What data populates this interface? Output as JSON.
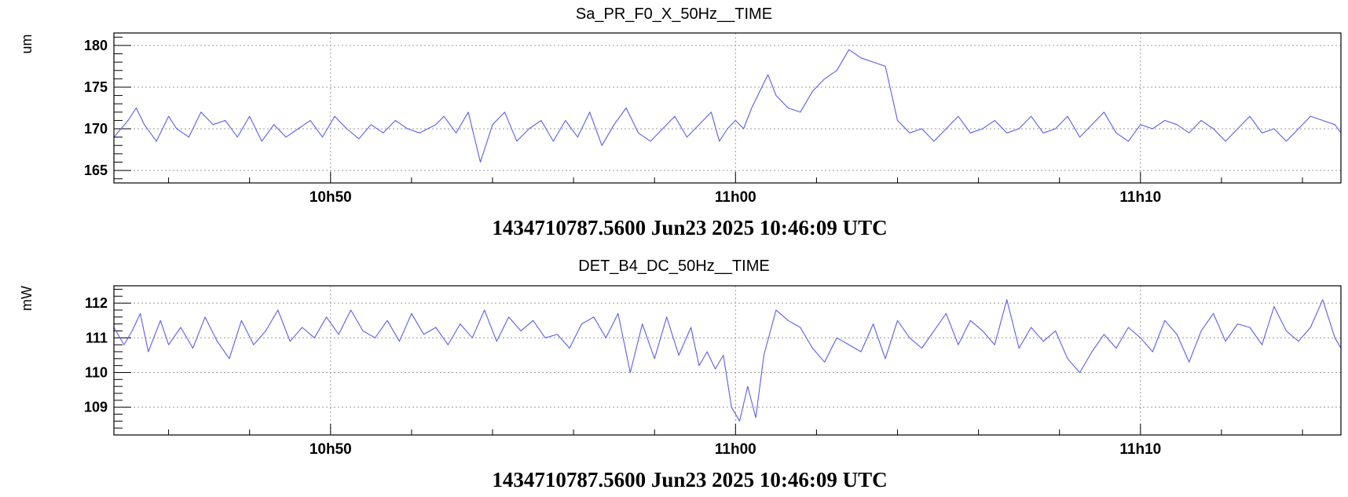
{
  "colors": {
    "trace": "#5a5ef0",
    "frame": "#000000",
    "grid": "#9a9a9a"
  },
  "chart_data": [
    {
      "type": "line",
      "title": "Sa_PR_F0_X_50Hz__TIME",
      "ylabel": "um",
      "xlabel": "1434710787.5600 Jun23 2025 10:46:09 UTC",
      "xlim_minutes": [
        44.65,
        74.95
      ],
      "ylim": [
        163.5,
        181.5
      ],
      "yticks": [
        165,
        170,
        175,
        180
      ],
      "ytick_labels": [
        "165",
        "170",
        "175",
        "180"
      ],
      "yminor_step": 1,
      "xticks_minutes": [
        50,
        60,
        70
      ],
      "xtick_labels": [
        "10h50",
        "11h00",
        "11h10"
      ],
      "xminor_step": 2,
      "grid": true,
      "series": [
        {
          "x_minutes": [
            44.65,
            45.0,
            45.2,
            45.4,
            45.7,
            46.0,
            46.2,
            46.5,
            46.8,
            47.1,
            47.4,
            47.7,
            48.0,
            48.3,
            48.6,
            48.9,
            49.2,
            49.5,
            49.8,
            50.1,
            50.4,
            50.7,
            51.0,
            51.3,
            51.6,
            51.9,
            52.2,
            52.6,
            52.8,
            53.1,
            53.4,
            53.7,
            54.0,
            54.3,
            54.6,
            54.9,
            55.2,
            55.5,
            55.8,
            56.1,
            56.4,
            56.7,
            57.0,
            57.3,
            57.6,
            57.9,
            58.2,
            58.5,
            58.8,
            59.1,
            59.4,
            59.6,
            59.8,
            60.0,
            60.2,
            60.4,
            60.6,
            60.8,
            61.0,
            61.3,
            61.6,
            61.9,
            62.2,
            62.5,
            62.8,
            63.1,
            63.4,
            63.7,
            64.0,
            64.3,
            64.6,
            64.9,
            65.2,
            65.5,
            65.8,
            66.1,
            66.4,
            66.7,
            67.0,
            67.3,
            67.6,
            67.9,
            68.2,
            68.5,
            68.8,
            69.1,
            69.4,
            69.7,
            70.0,
            70.3,
            70.6,
            70.9,
            71.2,
            71.5,
            71.8,
            72.1,
            72.4,
            72.7,
            73.0,
            73.3,
            73.6,
            73.9,
            74.2,
            74.5,
            74.8,
            74.95
          ],
          "values": [
            169.0,
            171.0,
            172.5,
            170.5,
            168.5,
            171.5,
            170.0,
            169.0,
            172.0,
            170.5,
            171.0,
            169.0,
            171.5,
            168.5,
            170.5,
            169.0,
            170.0,
            171.0,
            169.0,
            171.5,
            170.0,
            168.8,
            170.5,
            169.5,
            171.0,
            170.0,
            169.5,
            170.5,
            171.5,
            169.5,
            172.0,
            166.0,
            170.5,
            172.0,
            168.5,
            170.0,
            171.0,
            168.5,
            171.0,
            169.0,
            172.0,
            168.0,
            170.5,
            172.5,
            169.5,
            168.5,
            170.0,
            171.5,
            169.0,
            170.5,
            172.0,
            168.5,
            170.0,
            171.0,
            170.0,
            172.5,
            174.5,
            176.5,
            174.0,
            172.5,
            172.0,
            174.5,
            176.0,
            177.0,
            179.5,
            178.5,
            178.0,
            177.5,
            171.0,
            169.5,
            170.0,
            168.5,
            170.0,
            171.5,
            169.5,
            170.0,
            171.0,
            169.5,
            170.0,
            171.5,
            169.5,
            170.0,
            171.5,
            169.0,
            170.5,
            172.0,
            169.5,
            168.5,
            170.5,
            170.0,
            171.0,
            170.5,
            169.5,
            171.0,
            170.0,
            168.5,
            170.0,
            171.5,
            169.5,
            170.0,
            168.5,
            170.0,
            171.5,
            171.0,
            170.5,
            169.5
          ]
        }
      ]
    },
    {
      "type": "line",
      "title": "DET_B4_DC_50Hz__TIME",
      "ylabel": "mW",
      "xlabel": "1434710787.5600 Jun23 2025 10:46:09 UTC",
      "xlim_minutes": [
        44.65,
        74.95
      ],
      "ylim": [
        108.2,
        112.5
      ],
      "yticks": [
        109,
        110,
        111,
        112
      ],
      "ytick_labels": [
        "109",
        "110",
        "111",
        "112"
      ],
      "yminor_step": 0.2,
      "xticks_minutes": [
        50,
        60,
        70
      ],
      "xtick_labels": [
        "10h50",
        "11h00",
        "11h10"
      ],
      "xminor_step": 2,
      "grid": true,
      "series": [
        {
          "x_minutes": [
            44.65,
            44.9,
            45.1,
            45.3,
            45.5,
            45.8,
            46.0,
            46.3,
            46.6,
            46.9,
            47.2,
            47.5,
            47.8,
            48.1,
            48.4,
            48.7,
            49.0,
            49.3,
            49.6,
            49.9,
            50.2,
            50.5,
            50.8,
            51.1,
            51.4,
            51.7,
            52.0,
            52.3,
            52.6,
            52.9,
            53.2,
            53.5,
            53.8,
            54.1,
            54.4,
            54.7,
            55.0,
            55.3,
            55.6,
            55.9,
            56.2,
            56.5,
            56.8,
            57.1,
            57.4,
            57.7,
            58.0,
            58.3,
            58.6,
            58.9,
            59.1,
            59.3,
            59.5,
            59.7,
            59.9,
            60.1,
            60.3,
            60.5,
            60.7,
            61.0,
            61.3,
            61.6,
            61.9,
            62.2,
            62.5,
            62.8,
            63.1,
            63.4,
            63.7,
            64.0,
            64.3,
            64.6,
            64.9,
            65.2,
            65.5,
            65.8,
            66.1,
            66.4,
            66.7,
            67.0,
            67.3,
            67.6,
            67.9,
            68.2,
            68.5,
            68.8,
            69.1,
            69.4,
            69.7,
            70.0,
            70.3,
            70.6,
            70.9,
            71.2,
            71.5,
            71.8,
            72.1,
            72.4,
            72.7,
            73.0,
            73.3,
            73.6,
            73.9,
            74.2,
            74.5,
            74.8,
            74.95
          ],
          "values": [
            111.3,
            110.8,
            111.2,
            111.7,
            110.6,
            111.5,
            110.8,
            111.3,
            110.7,
            111.6,
            110.9,
            110.4,
            111.5,
            110.8,
            111.2,
            111.8,
            110.9,
            111.3,
            111.0,
            111.6,
            111.1,
            111.8,
            111.2,
            111.0,
            111.5,
            110.9,
            111.7,
            111.1,
            111.3,
            110.8,
            111.4,
            111.0,
            111.8,
            110.9,
            111.6,
            111.2,
            111.5,
            111.0,
            111.1,
            110.7,
            111.4,
            111.6,
            111.0,
            111.7,
            110.0,
            111.4,
            110.4,
            111.6,
            110.5,
            111.3,
            110.2,
            110.6,
            110.1,
            110.5,
            109.0,
            108.6,
            109.6,
            108.7,
            110.5,
            111.8,
            111.5,
            111.3,
            110.7,
            110.3,
            111.0,
            110.8,
            110.6,
            111.4,
            110.4,
            111.5,
            111.0,
            110.7,
            111.2,
            111.7,
            110.8,
            111.5,
            111.2,
            110.8,
            112.1,
            110.7,
            111.3,
            110.9,
            111.2,
            110.4,
            110.0,
            110.6,
            111.1,
            110.7,
            111.3,
            111.0,
            110.6,
            111.5,
            111.1,
            110.3,
            111.2,
            111.7,
            110.9,
            111.4,
            111.3,
            110.8,
            111.9,
            111.2,
            110.9,
            111.3,
            112.1,
            111.0,
            110.7
          ]
        }
      ]
    }
  ]
}
